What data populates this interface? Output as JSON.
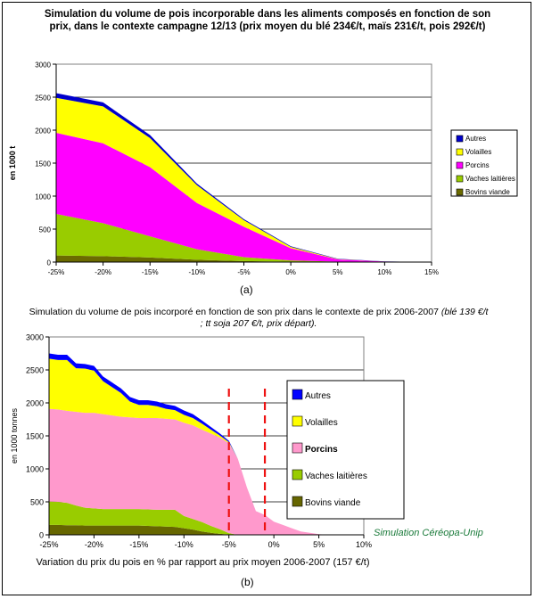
{
  "chart_data": [
    {
      "type": "area",
      "stacked": true,
      "title": "Simulation du volume de pois incorporable dans les aliments composés en fonction de son prix, dans le contexte campagne 12/13 (prix moyen du blé 234€/t, maïs 231€/t, pois 292€/t)",
      "ylabel": "en 1000 t",
      "xlabel": "",
      "caption": "(a)",
      "x": [
        -25,
        -20,
        -15,
        -10,
        -5,
        0,
        5,
        10,
        15
      ],
      "x_tick_labels": [
        "-25%",
        "-20%",
        "-15%",
        "-10%",
        "-5%",
        "0%",
        "5%",
        "10%",
        "15%"
      ],
      "y_ticks": [
        0,
        500,
        1000,
        1500,
        2000,
        2500,
        3000
      ],
      "ylim": [
        0,
        3000
      ],
      "grid": true,
      "legend_position": "right",
      "series": [
        {
          "name": "Bovins viande",
          "color": "#6b6b00",
          "values": [
            100,
            90,
            70,
            35,
            15,
            5,
            2,
            0,
            0
          ]
        },
        {
          "name": "Vaches laitières",
          "color": "#99cc00",
          "values": [
            630,
            500,
            320,
            160,
            60,
            20,
            5,
            0,
            0
          ]
        },
        {
          "name": "Porcins",
          "color": "#ff00ff",
          "values": [
            1230,
            1210,
            1050,
            700,
            460,
            185,
            33,
            8,
            0
          ]
        },
        {
          "name": "Volailles",
          "color": "#ffff00",
          "values": [
            530,
            560,
            440,
            270,
            100,
            20,
            5,
            0,
            0
          ]
        },
        {
          "name": "Autres",
          "color": "#0000cc",
          "values": [
            70,
            60,
            45,
            25,
            15,
            10,
            5,
            2,
            0
          ]
        }
      ],
      "legend_order": [
        "Autres",
        "Volailles",
        "Porcins",
        "Vaches laitières",
        "Bovins viande"
      ]
    },
    {
      "type": "area",
      "stacked": true,
      "title": "Simulation du volume de pois incorporé en fonction de son prix dans le contexte de prix 2006-2007",
      "title_note": "(blé 139 €/t ; tt soja 207 €/t, prix départ).",
      "ylabel": "en 1000 tonnes",
      "xlabel": "Variation du prix du pois en % par rapport au prix moyen 2006-2007 (157 €/t)",
      "caption": "(b)",
      "annotation": "Simulation Céréopa-Unip",
      "x": [
        -25,
        -24,
        -23,
        -22,
        -21,
        -20,
        -19,
        -18,
        -17,
        -16,
        -15,
        -14,
        -13,
        -12,
        -11,
        -10,
        -9,
        -8,
        -7,
        -6,
        -5,
        -4,
        -3,
        -2,
        -1,
        0,
        1,
        2,
        3,
        4,
        5,
        6
      ],
      "x_tick_labels": [
        "-25%",
        "-20%",
        "-15%",
        "-10%",
        "-5%",
        "0%",
        "5%",
        "10%"
      ],
      "x_tick_values": [
        -25,
        -20,
        -15,
        -10,
        -5,
        0,
        5,
        10
      ],
      "xlim": [
        -25,
        10
      ],
      "y_ticks": [
        0,
        500,
        1000,
        1500,
        2000,
        2500,
        3000
      ],
      "ylim": [
        0,
        3000
      ],
      "grid": true,
      "legend_position": "right",
      "vlines": [
        -5,
        -1
      ],
      "series": [
        {
          "name": "Bovins viande",
          "color": "#666600",
          "values": [
            150,
            150,
            145,
            145,
            140,
            140,
            140,
            140,
            140,
            140,
            140,
            135,
            130,
            125,
            120,
            100,
            80,
            50,
            30,
            15,
            5,
            0,
            0,
            0,
            0,
            0,
            0,
            0,
            0,
            0,
            0,
            0
          ]
        },
        {
          "name": "Vaches laitières",
          "color": "#99cc00",
          "values": [
            355,
            350,
            340,
            300,
            270,
            260,
            250,
            250,
            250,
            250,
            250,
            250,
            250,
            255,
            260,
            185,
            160,
            145,
            105,
            70,
            20,
            0,
            0,
            0,
            0,
            0,
            0,
            0,
            0,
            0,
            0,
            0
          ]
        },
        {
          "name": "Porcins",
          "color": "#ff99cc",
          "values": [
            1405,
            1400,
            1395,
            1420,
            1440,
            1450,
            1440,
            1420,
            1400,
            1390,
            1380,
            1385,
            1390,
            1380,
            1370,
            1415,
            1420,
            1400,
            1400,
            1390,
            1365,
            1150,
            720,
            360,
            300,
            200,
            150,
            100,
            50,
            30,
            10,
            0
          ]
        },
        {
          "name": "Volailles",
          "color": "#ffff00",
          "values": [
            760,
            750,
            770,
            660,
            670,
            640,
            500,
            430,
            360,
            240,
            200,
            200,
            180,
            150,
            140,
            120,
            110,
            90,
            60,
            30,
            15,
            0,
            0,
            0,
            0,
            0,
            0,
            0,
            0,
            0,
            0,
            0
          ]
        },
        {
          "name": "Autres",
          "color": "#0000ff",
          "values": [
            80,
            80,
            80,
            75,
            70,
            70,
            70,
            70,
            70,
            70,
            70,
            70,
            70,
            70,
            65,
            65,
            60,
            50,
            40,
            30,
            20,
            0,
            0,
            0,
            0,
            0,
            0,
            0,
            0,
            0,
            0,
            0
          ]
        }
      ],
      "legend_order": [
        "Autres",
        "Volailles",
        "Porcins",
        "Vaches laitières",
        "Bovins viande"
      ]
    }
  ]
}
